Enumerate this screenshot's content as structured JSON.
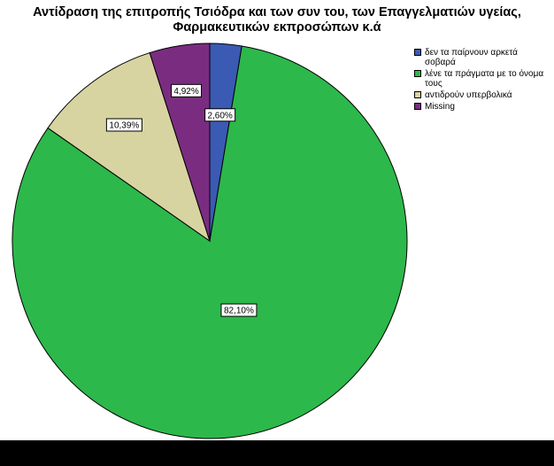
{
  "chart_data": {
    "type": "pie",
    "title_lines": [
      "Αντίδραση της επιτροπής Τσιόδρα και των συν του, των Επαγγελματιών υγείας,",
      "Φαρμακευτικών εκπροσώπων κ.ά"
    ],
    "start_angle_deg": 0,
    "direction": "clockwise",
    "slices": [
      {
        "label": "δεν τα παίρνουν αρκετά σοβαρά",
        "value": 2.6,
        "display": "2,60%",
        "color": "#3b5ab3"
      },
      {
        "label": "λένε τα πράγματα με το όνομα τους",
        "value": 82.1,
        "display": "82,10%",
        "color": "#2db84b"
      },
      {
        "label": "αντιδρούν υπερβολικά",
        "value": 10.39,
        "display": "10,39%",
        "color": "#d8d4a1"
      },
      {
        "label": "Missing",
        "value": 4.92,
        "display": "4,92%",
        "color": "#7a2d80"
      }
    ],
    "legend_position": "top-right"
  }
}
